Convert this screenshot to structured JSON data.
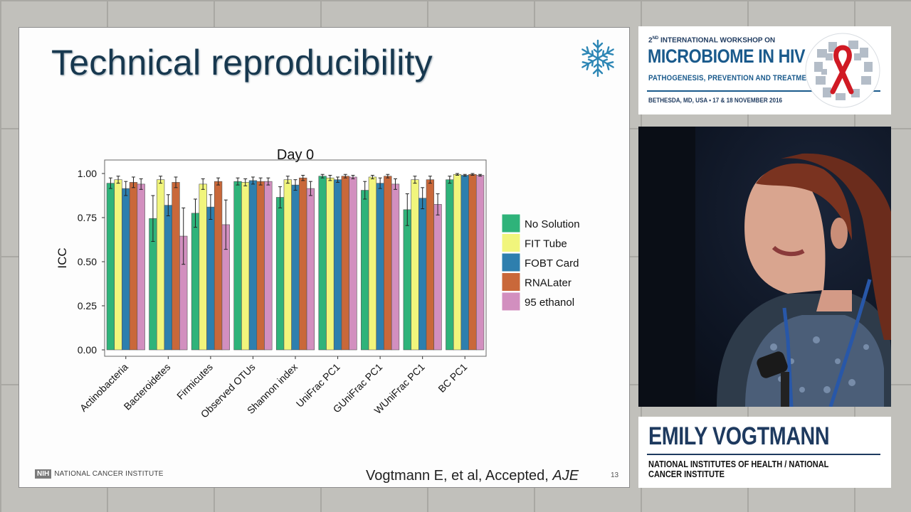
{
  "slide": {
    "title": "Technical reproducibility",
    "footer_org": "NATIONAL CANCER INSTITUTE",
    "footer_logo": "NIH",
    "citation_prefix": "Vogtmann E, et al, Accepted, ",
    "citation_journal": "AJE",
    "slide_number": "13",
    "icon": "snowflake-icon"
  },
  "banner": {
    "line1_num": "2",
    "line1_sup": "ND",
    "line1_rest": " INTERNATIONAL WORKSHOP ON",
    "main": "MICROBIOME IN HIV",
    "sub": "PATHOGENESIS, PREVENTION AND TREATMENT",
    "location": "BETHESDA, MD, USA  •  17 & 18 NOVEMBER 2016",
    "logo_icon": "red-ribbon-icon"
  },
  "speaker": {
    "name": "EMILY VOGTMANN",
    "affiliation": "NATIONAL INSTITUTES OF HEALTH / NATIONAL CANCER INSTITUTE"
  },
  "colors": {
    "No Solution": "#2fb37a",
    "FIT Tube": "#f1f57c",
    "FOBT Card": "#2e7fae",
    "RNALater": "#c9683a",
    "95 ethanol": "#d28fbf"
  },
  "chart_data": {
    "type": "bar",
    "title": "Day 0",
    "xlabel": "",
    "ylabel": "ICC",
    "ylim": [
      0,
      1.05
    ],
    "yticks": [
      "0.00",
      "0.25",
      "0.50",
      "0.75",
      "1.00"
    ],
    "grid": false,
    "legend_position": "right",
    "categories": [
      "Actinobacteria",
      "Bacteroidetes",
      "Firmicutes",
      "Observed OTUs",
      "Shannon index",
      "UniFrac PC1",
      "GUniFrac PC1",
      "WUniFrac PC1",
      "BC PC1"
    ],
    "series": [
      {
        "name": "No Solution",
        "values": [
          0.945,
          0.745,
          0.775,
          0.955,
          0.865,
          0.985,
          0.905,
          0.795,
          0.965
        ],
        "err": [
          0.03,
          0.13,
          0.08,
          0.02,
          0.06,
          0.01,
          0.05,
          0.09,
          0.02
        ]
      },
      {
        "name": "FIT Tube",
        "values": [
          0.965,
          0.965,
          0.94,
          0.95,
          0.965,
          0.975,
          0.98,
          0.965,
          0.995
        ],
        "err": [
          0.02,
          0.02,
          0.03,
          0.02,
          0.02,
          0.015,
          0.01,
          0.02,
          0.005
        ]
      },
      {
        "name": "FOBT Card",
        "values": [
          0.915,
          0.82,
          0.81,
          0.96,
          0.935,
          0.965,
          0.945,
          0.86,
          0.99
        ],
        "err": [
          0.04,
          0.06,
          0.07,
          0.02,
          0.03,
          0.015,
          0.03,
          0.06,
          0.005
        ]
      },
      {
        "name": "RNALater",
        "values": [
          0.95,
          0.95,
          0.955,
          0.955,
          0.975,
          0.985,
          0.985,
          0.965,
          0.995
        ],
        "err": [
          0.03,
          0.03,
          0.02,
          0.02,
          0.015,
          0.01,
          0.01,
          0.02,
          0.005
        ]
      },
      {
        "name": "95 ethanol",
        "values": [
          0.94,
          0.645,
          0.71,
          0.955,
          0.915,
          0.98,
          0.94,
          0.825,
          0.99
        ],
        "err": [
          0.03,
          0.16,
          0.14,
          0.02,
          0.04,
          0.01,
          0.03,
          0.06,
          0.005
        ]
      }
    ]
  }
}
